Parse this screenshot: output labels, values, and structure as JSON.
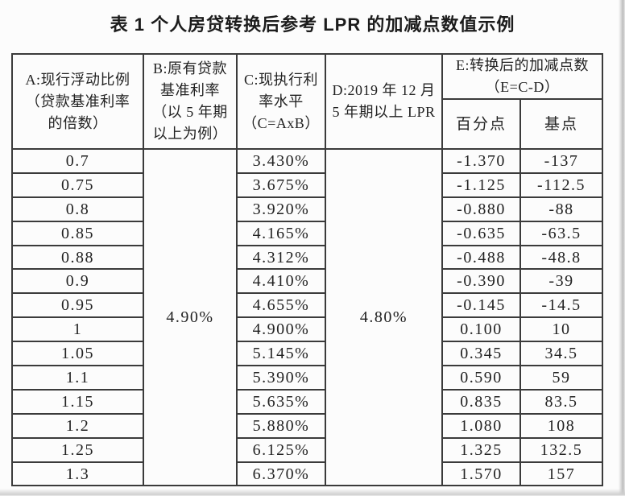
{
  "page": {
    "title": "表 1  个人房贷转换后参考 LPR 的加减点数值示例"
  },
  "table": {
    "border_color": "#3b3b3b",
    "text_color": "#222222",
    "background_color": "#fcfcfc",
    "headers": {
      "col_a": "A:现行浮动比例\n（贷款基准利率\n的倍数）",
      "col_b": "B:原有贷款\n基准利率\n（以 5 年期\n以上为例）",
      "col_c": "C:现执行利\n率水平\n（C=AxB）",
      "col_d": "D:2019 年 12 月\n5 年期以上 LPR",
      "col_e": "E:转换后的加减点数\n（E=C-D）",
      "col_e_pct": "百分点",
      "col_e_bp": "基点"
    },
    "merged": {
      "b_value": "4.90%",
      "d_value": "4.80%"
    },
    "rows": [
      {
        "ratio": "0.7",
        "rate": "3.430%",
        "pct": "-1.370",
        "bp": "-137"
      },
      {
        "ratio": "0.75",
        "rate": "3.675%",
        "pct": "-1.125",
        "bp": "-112.5"
      },
      {
        "ratio": "0.8",
        "rate": "3.920%",
        "pct": "-0.880",
        "bp": "-88"
      },
      {
        "ratio": "0.85",
        "rate": "4.165%",
        "pct": "-0.635",
        "bp": "-63.5"
      },
      {
        "ratio": "0.88",
        "rate": "4.312%",
        "pct": "-0.488",
        "bp": "-48.8"
      },
      {
        "ratio": "0.9",
        "rate": "4.410%",
        "pct": "-0.390",
        "bp": "-39"
      },
      {
        "ratio": "0.95",
        "rate": "4.655%",
        "pct": "-0.145",
        "bp": "-14.5"
      },
      {
        "ratio": "1",
        "rate": "4.900%",
        "pct": "0.100",
        "bp": "10"
      },
      {
        "ratio": "1.05",
        "rate": "5.145%",
        "pct": "0.345",
        "bp": "34.5"
      },
      {
        "ratio": "1.1",
        "rate": "5.390%",
        "pct": "0.590",
        "bp": "59"
      },
      {
        "ratio": "1.15",
        "rate": "5.635%",
        "pct": "0.835",
        "bp": "83.5"
      },
      {
        "ratio": "1.2",
        "rate": "5.880%",
        "pct": "1.080",
        "bp": "108"
      },
      {
        "ratio": "1.25",
        "rate": "6.125%",
        "pct": "1.325",
        "bp": "132.5"
      },
      {
        "ratio": "1.3",
        "rate": "6.370%",
        "pct": "1.570",
        "bp": "157"
      }
    ]
  }
}
